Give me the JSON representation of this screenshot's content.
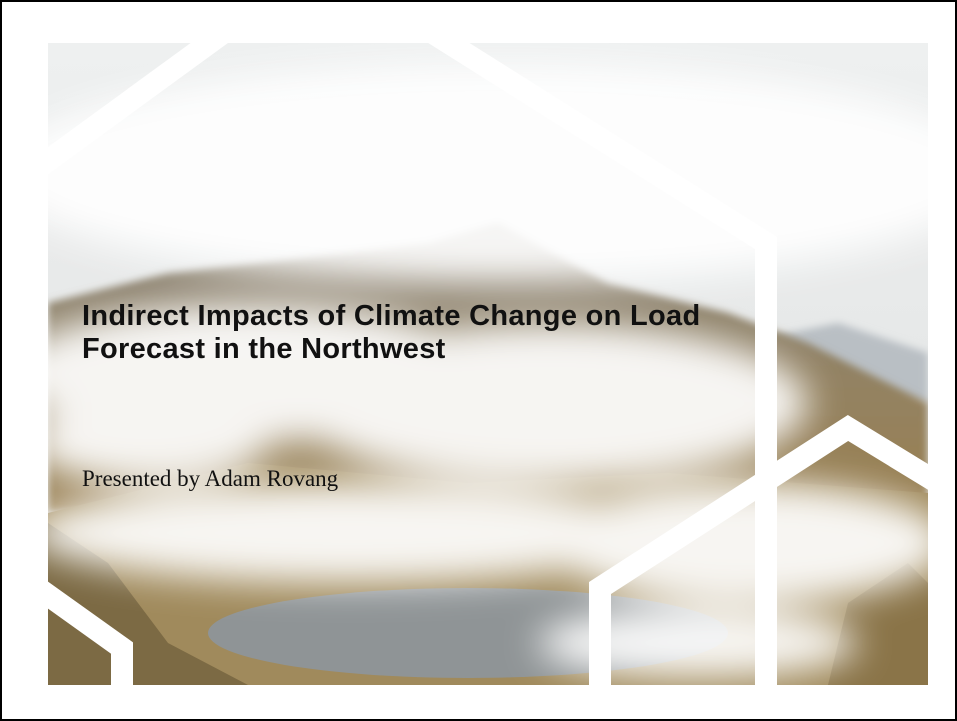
{
  "slide": {
    "title": "Indirect Impacts of Climate Change on Load Forecast in the Northwest",
    "subtitle": "Presented by Adam Rovang"
  }
}
